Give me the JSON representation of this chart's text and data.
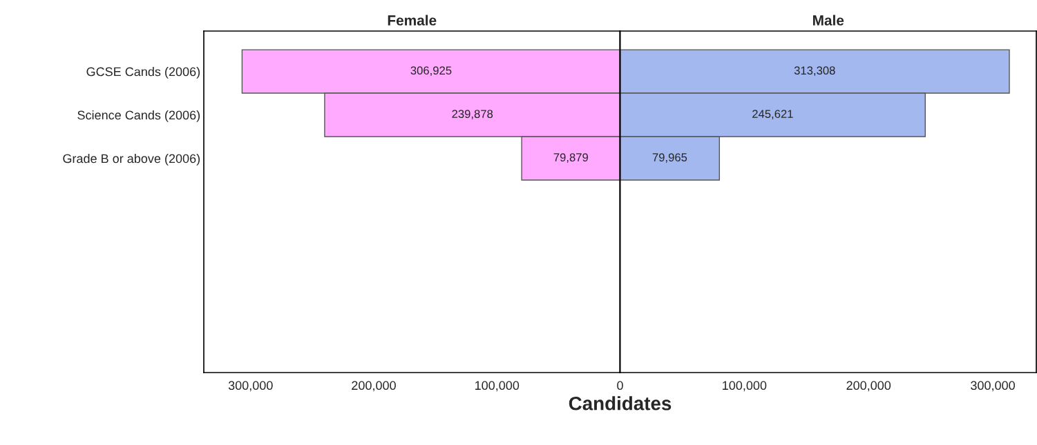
{
  "chart_data": [
    {
      "type": "bar",
      "orientation": "horizontal",
      "title": "Female",
      "categories": [
        "GCSE Cands (2006)",
        "Science Cands (2006)",
        "Grade B or above (2006)",
        null,
        null,
        null,
        null
      ],
      "series": [
        {
          "color": "#ffaaff",
          "values": [
            306925,
            239878,
            79879,
            null,
            null,
            null,
            null
          ],
          "value_labels": [
            "306,925",
            "239,878",
            "79,879",
            null,
            null,
            null,
            null
          ]
        }
      ],
      "xlim": [
        338000,
        0
      ],
      "xticks": [
        {
          "value": 300000,
          "label": "300,000"
        },
        {
          "value": 200000,
          "label": "200,000"
        },
        {
          "value": 100000,
          "label": "100,000"
        },
        0
      ],
      "grid": false
    },
    {
      "type": "bar",
      "orientation": "horizontal",
      "title": "Male",
      "xlabel": "Candidates",
      "categories": [
        null,
        null,
        null,
        null,
        null,
        null,
        null
      ],
      "series": [
        {
          "color": "#a4b8f0",
          "values": [
            313308,
            245621,
            79965,
            null,
            null,
            null,
            null
          ],
          "value_labels": [
            "313,308",
            "245,621",
            "79,965",
            null,
            null,
            null,
            null
          ]
        }
      ],
      "xlim": [
        0,
        335000
      ],
      "xticks": [
        {
          "value": 0,
          "label": null
        },
        {
          "value": 100000,
          "label": "100,000"
        },
        {
          "value": 200000,
          "label": "200,000"
        },
        {
          "value": 300000,
          "label": "300,000"
        }
      ],
      "grid": false
    }
  ]
}
